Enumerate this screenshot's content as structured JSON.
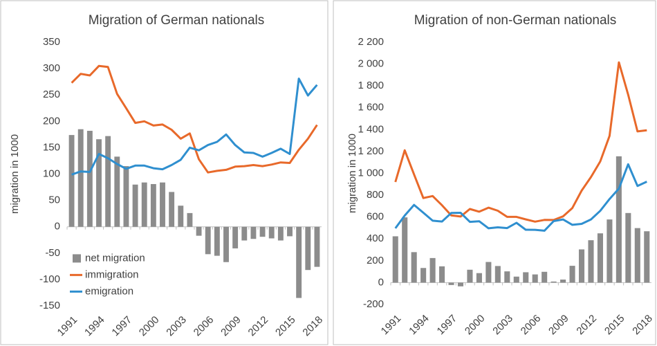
{
  "chart_data": [
    {
      "type": "bar",
      "title": "Migration of German nationals",
      "y_label": "migration in 1000",
      "categories": [
        "1991",
        null,
        null,
        "1994",
        null,
        null,
        "1997",
        null,
        null,
        "2000",
        null,
        null,
        "2003",
        null,
        null,
        "2006",
        null,
        null,
        "2009",
        null,
        null,
        "2012",
        null,
        null,
        "2015",
        null,
        null,
        "2018"
      ],
      "series": [
        {
          "name": "net migration",
          "type": "bar",
          "color": "#8c8c8c",
          "values": [
            174,
            185,
            182,
            166,
            172,
            133,
            115,
            80,
            84,
            81,
            84,
            66,
            40,
            26,
            -17,
            -52,
            -55,
            -67,
            -41,
            -26,
            -23,
            -19,
            -22,
            -26,
            -18,
            -135,
            -82,
            -76
          ]
        },
        {
          "name": "immigration",
          "type": "line",
          "color": "#e8692a",
          "values": [
            273,
            290,
            287,
            305,
            303,
            252,
            225,
            197,
            200,
            192,
            194,
            184,
            167,
            177,
            128,
            103,
            106,
            108,
            114,
            115,
            117,
            115,
            118,
            122,
            121,
            146,
            167,
            193
          ]
        },
        {
          "name": "emigration",
          "type": "line",
          "color": "#2f8fcf",
          "values": [
            99,
            105,
            104,
            138,
            130,
            119,
            110,
            116,
            116,
            111,
            109,
            117,
            127,
            150,
            145,
            155,
            161,
            175,
            155,
            141,
            140,
            133,
            140,
            148,
            138,
            281,
            249,
            269
          ]
        }
      ],
      "ylim": [
        -150,
        350
      ],
      "yticks": [
        -150,
        -100,
        -50,
        0,
        50,
        100,
        150,
        200,
        250,
        300,
        350
      ],
      "grid": false,
      "legend": "lower left"
    },
    {
      "type": "bar",
      "title": "Migration of non-German nationals",
      "y_label": "migration in 1000",
      "categories": [
        "1991",
        null,
        null,
        "1994",
        null,
        null,
        "1997",
        null,
        null,
        "2000",
        null,
        null,
        "2003",
        null,
        null,
        "2006",
        null,
        null,
        "2009",
        null,
        null,
        "2012",
        null,
        null,
        "2015",
        null,
        null,
        "2018"
      ],
      "series": [
        {
          "type": "bar",
          "color": "#8c8c8c",
          "values": [
            424,
            597,
            279,
            134,
            225,
            149,
            -22,
            -34,
            118,
            87,
            189,
            152,
            103,
            55,
            95,
            75,
            99,
            10,
            28,
            154,
            304,
            388,
            451,
            578,
            1156,
            637,
            499,
            470
          ]
        },
        {
          "type": "line",
          "color": "#e8692a",
          "values": [
            921,
            1211,
            990,
            774,
            792,
            708,
            615,
            605,
            674,
            649,
            686,
            658,
            602,
            602,
            579,
            558,
            574,
            573,
            606,
            683,
            842,
            966,
            1108,
            1343,
            2016,
            1720,
            1384,
            1394
          ]
        },
        {
          "type": "line",
          "color": "#2f8fcf",
          "values": [
            497,
            614,
            711,
            640,
            567,
            559,
            637,
            639,
            556,
            562,
            497,
            506,
            499,
            547,
            484,
            483,
            475,
            563,
            578,
            529,
            538,
            578,
            657,
            765,
            860,
            1083,
            885,
            924
          ]
        }
      ],
      "ylim": [
        -200,
        2200
      ],
      "yticks": [
        -200,
        0,
        200,
        400,
        600,
        800,
        {
          "value": 1000,
          "label": "1 000"
        },
        {
          "value": 1200,
          "label": "1 200"
        },
        {
          "value": 1400,
          "label": "1 400"
        },
        {
          "value": 1600,
          "label": "1 600"
        },
        {
          "value": 1800,
          "label": "1 800"
        },
        {
          "value": 2000,
          "label": "2 000"
        },
        {
          "value": 2200,
          "label": "2 200"
        }
      ],
      "grid": false
    }
  ]
}
